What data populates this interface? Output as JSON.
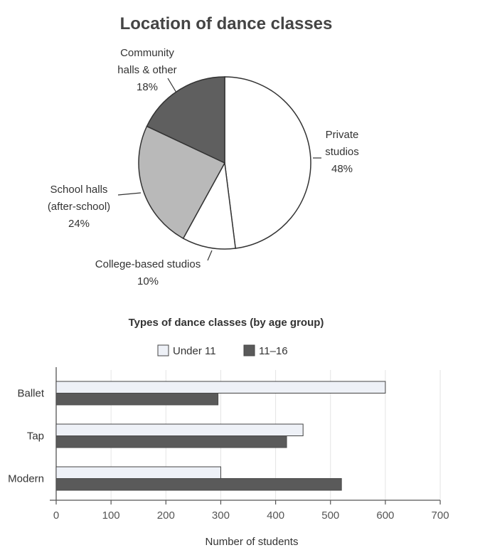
{
  "chart_data": [
    {
      "type": "pie",
      "title": "Location of dance classes",
      "slices": [
        {
          "label_lines": [
            "Private",
            "studios"
          ],
          "pct_label": "48%",
          "value": 48,
          "color": "#ffffff"
        },
        {
          "label_lines": [
            "College-based studios"
          ],
          "pct_label": "10%",
          "value": 10,
          "color": "#ffffff"
        },
        {
          "label_lines": [
            "School halls",
            "(after-school)"
          ],
          "pct_label": "24%",
          "value": 24,
          "color": "#b9b9b9"
        },
        {
          "label_lines": [
            "Community",
            "halls & other"
          ],
          "pct_label": "18%",
          "value": 18,
          "color": "#5f5f5f"
        }
      ]
    },
    {
      "type": "bar",
      "orientation": "horizontal",
      "title": "Types of dance classes (by age group)",
      "categories": [
        "Ballet",
        "Tap",
        "Modern"
      ],
      "series": [
        {
          "name": "Under 11",
          "values": [
            600,
            450,
            300
          ],
          "color": "#eef1f7"
        },
        {
          "name": "11–16",
          "values": [
            295,
            420,
            520
          ],
          "color": "#5a5a5a"
        }
      ],
      "xlabel": "Number of students",
      "xlim": [
        0,
        700
      ],
      "xticks": [
        "0",
        "100",
        "200",
        "300",
        "400",
        "500",
        "600",
        "700"
      ],
      "legend": "top"
    }
  ]
}
